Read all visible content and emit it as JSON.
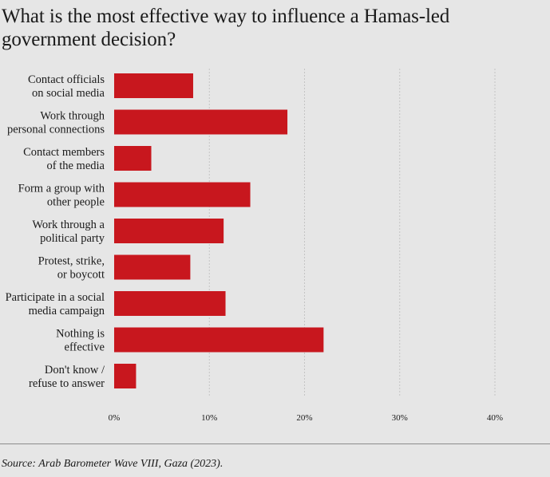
{
  "chart_data": {
    "type": "bar",
    "orientation": "horizontal",
    "title": "What is the most effective way to influence a Hamas-led government decision?",
    "categories": [
      [
        "Contact officials",
        "on social media"
      ],
      [
        "Work through",
        "personal connections"
      ],
      [
        "Contact members",
        "of the media"
      ],
      [
        "Form a group with",
        "other people"
      ],
      [
        "Work through a",
        "political party"
      ],
      [
        "Protest, strike,",
        "or boycott"
      ],
      [
        "Participate in a social",
        "media campaign"
      ],
      [
        "Nothing is",
        "effective"
      ],
      [
        "Don't know /",
        "refuse to answer"
      ]
    ],
    "values": [
      8.3,
      18.2,
      3.9,
      14.3,
      11.5,
      8.0,
      11.7,
      22.0,
      2.3
    ],
    "xlim": [
      0,
      40
    ],
    "xticks": [
      0,
      10,
      20,
      30,
      40
    ],
    "xtick_labels": [
      "0%",
      "10%",
      "20%",
      "30%",
      "40%"
    ],
    "xlabel": "",
    "ylabel": "",
    "grid": true,
    "bar_color": "#c8171e",
    "grid_color": "#c4c4c4"
  },
  "source": "Source: Arab Barometer Wave VIII, Gaza (2023)."
}
